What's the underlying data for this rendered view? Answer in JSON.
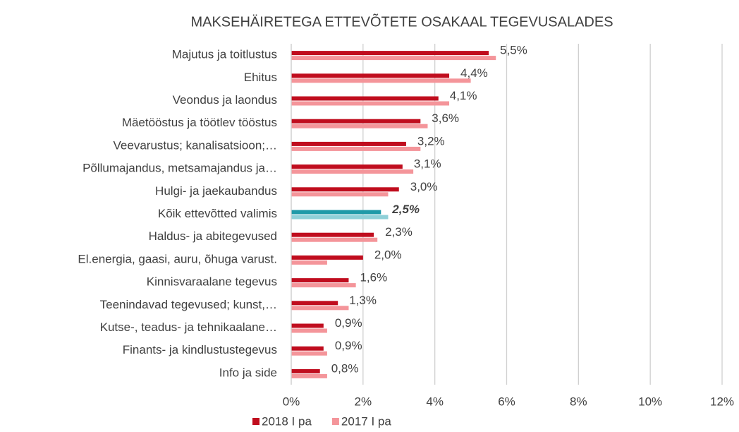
{
  "chart_data": {
    "type": "hbar",
    "title": "MAKSEHÄIRETEGA ETTEVÕTETE OSAKAAL TEGEVUSALADES",
    "categories": [
      "Majutus ja toitlustus",
      "Ehitus",
      "Veondus ja laondus",
      "Mäetööstus ja töötlev tööstus",
      "Veevarustus; kanalisatsioon;…",
      "Põllumajandus, metsamajandus ja…",
      "Hulgi- ja jaekaubandus",
      "Kõik ettevõtted valimis",
      "Haldus- ja abitegevused",
      "El.energia, gaasi, auru, õhuga varust.",
      "Kinnisvaraalane tegevus",
      "Teenindavad tegevused; kunst,…",
      "Kutse-, teadus- ja tehnikaalane…",
      "Finants- ja kindlustustegevus",
      "Info ja side"
    ],
    "series": [
      {
        "name": "2018 I pa",
        "color": "#c00d1e",
        "values": [
          5.5,
          4.4,
          4.1,
          3.6,
          3.2,
          3.1,
          3.0,
          2.5,
          2.3,
          2.0,
          1.6,
          1.3,
          0.9,
          0.9,
          0.8
        ],
        "value_labels": [
          "5,5%",
          "4,4%",
          "4,1%",
          "3,6%",
          "3,2%",
          "3,1%",
          "3,0%",
          "2,5%",
          "2,3%",
          "2,0%",
          "1,6%",
          "1,3%",
          "0,9%",
          "0,9%",
          "0,8%"
        ]
      },
      {
        "name": "2017 I pa",
        "color": "#f4959a",
        "values": [
          5.7,
          5.0,
          4.4,
          3.8,
          3.6,
          3.4,
          2.7,
          2.7,
          2.4,
          1.0,
          1.8,
          1.6,
          1.0,
          1.0,
          1.0
        ]
      }
    ],
    "highlight": {
      "category": "Kõik ettevõtted valimis",
      "colors": [
        "#1f9aa8",
        "#8fd0d8"
      ]
    },
    "xlim": [
      0,
      12
    ],
    "xticks": [
      {
        "value": 0,
        "label": "0%"
      },
      {
        "value": 2,
        "label": "2%"
      },
      {
        "value": 4,
        "label": "4%"
      },
      {
        "value": 6,
        "label": "6%"
      },
      {
        "value": 8,
        "label": "8%"
      },
      {
        "value": 10,
        "label": "10%"
      },
      {
        "value": 12,
        "label": "12%"
      }
    ],
    "grid": true,
    "legend": "bottom"
  }
}
